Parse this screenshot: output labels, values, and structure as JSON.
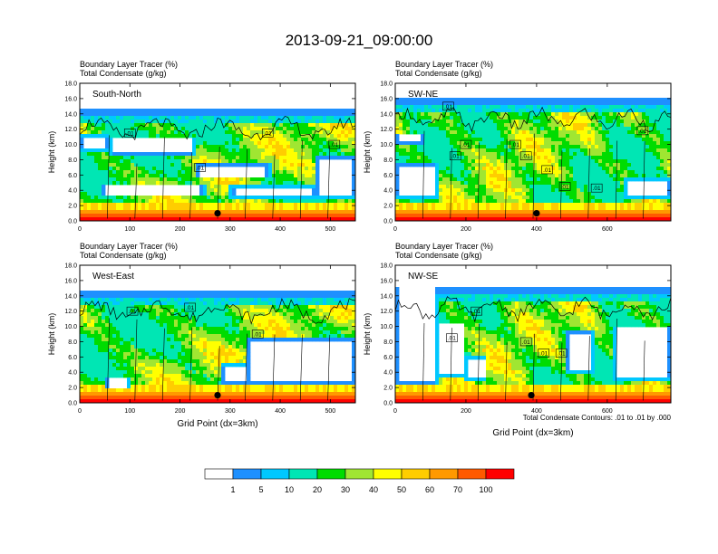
{
  "figure": {
    "title": "2013-09-21_09:00:00",
    "contour_note": "Total Condensate Contours: .01 to .01 by .000"
  },
  "chart_data": [
    {
      "type": "heatmap",
      "panel_label": "South-North",
      "title_line1": "Boundary Layer Tracer   (%)",
      "title_line2": "Total Condensate   (g/kg)",
      "xlabel": "",
      "ylabel": "Height (km)",
      "xlim": [
        0,
        550
      ],
      "ylim": [
        0,
        18
      ],
      "xticks": [
        0,
        100,
        200,
        300,
        400,
        500
      ],
      "yticks": [
        0,
        2,
        4,
        6,
        8,
        10,
        12,
        14,
        16,
        18
      ],
      "contour_labels": [
        {
          "text": ".01",
          "x": 100,
          "y": 11.5
        },
        {
          "text": ".01",
          "x": 240,
          "y": 7.0
        },
        {
          "text": ".01",
          "x": 375,
          "y": 11.5
        },
        {
          "text": ".01",
          "x": 508,
          "y": 10.0
        }
      ],
      "marker": {
        "x": 275,
        "y": 1.0
      },
      "cloud_top_km": 14.2,
      "clear_regions": [
        {
          "x": [
            0,
            60
          ],
          "y": [
            9.2,
            11.2
          ]
        },
        {
          "x": [
            60,
            230
          ],
          "y": [
            8.5,
            11.0
          ]
        },
        {
          "x": [
            230,
            380
          ],
          "y": [
            5.5,
            7.5
          ]
        },
        {
          "x": [
            40,
            250
          ],
          "y": [
            3.2,
            4.8
          ]
        },
        {
          "x": [
            300,
            470
          ],
          "y": [
            3.0,
            4.5
          ]
        },
        {
          "x": [
            470,
            550
          ],
          "y": [
            3.0,
            8.5
          ]
        }
      ]
    },
    {
      "type": "heatmap",
      "panel_label": "SW-NE",
      "title_line1": "Boundary Layer Tracer   (%)",
      "title_line2": "Total Condensate   (g/kg)",
      "xlabel": "",
      "ylabel": "Height (km)",
      "xlim": [
        0,
        780
      ],
      "ylim": [
        0,
        18
      ],
      "xticks": [
        0,
        200,
        400,
        600
      ],
      "yticks": [
        0,
        2,
        4,
        6,
        8,
        10,
        12,
        14,
        16,
        18
      ],
      "contour_labels": [
        {
          "text": ".01",
          "x": 150,
          "y": 15.0
        },
        {
          "text": ".01",
          "x": 200,
          "y": 10.0
        },
        {
          "text": ".01",
          "x": 170,
          "y": 8.5
        },
        {
          "text": ".01",
          "x": 340,
          "y": 10.0
        },
        {
          "text": ".01",
          "x": 370,
          "y": 8.5
        },
        {
          "text": ".01",
          "x": 430,
          "y": 6.7
        },
        {
          "text": ".01",
          "x": 480,
          "y": 4.5
        },
        {
          "text": ".01",
          "x": 570,
          "y": 4.3
        },
        {
          "text": ".01",
          "x": 700,
          "y": 11.8
        }
      ],
      "marker": {
        "x": 400,
        "y": 1.0
      },
      "cloud_top_km": 15.5,
      "clear_regions": [
        {
          "x": [
            0,
            120
          ],
          "y": [
            3.0,
            7.5
          ]
        },
        {
          "x": [
            0,
            80
          ],
          "y": [
            10.0,
            11.5
          ]
        },
        {
          "x": [
            650,
            780
          ],
          "y": [
            3.0,
            5.5
          ]
        }
      ]
    },
    {
      "type": "heatmap",
      "panel_label": "West-East",
      "title_line1": "Boundary Layer Tracer   (%)",
      "title_line2": "Total Condensate   (g/kg)",
      "xlabel": "Grid Point (dx=3km)",
      "ylabel": "Height (km)",
      "xlim": [
        0,
        550
      ],
      "ylim": [
        0,
        18
      ],
      "xticks": [
        0,
        100,
        200,
        300,
        400,
        500
      ],
      "yticks": [
        0,
        2,
        4,
        6,
        8,
        10,
        12,
        14,
        16,
        18
      ],
      "contour_labels": [
        {
          "text": ".01",
          "x": 105,
          "y": 12.0
        },
        {
          "text": ".01",
          "x": 220,
          "y": 12.5
        },
        {
          "text": ".01",
          "x": 355,
          "y": 9.0
        }
      ],
      "marker": {
        "x": 275,
        "y": 1.0
      },
      "cloud_top_km": 14.2,
      "clear_regions": [
        {
          "x": [
            330,
            550
          ],
          "y": [
            2.5,
            8.5
          ]
        },
        {
          "x": [
            280,
            340
          ],
          "y": [
            2.5,
            5.0
          ]
        },
        {
          "x": [
            50,
            100
          ],
          "y": [
            1.7,
            3.5
          ]
        }
      ]
    },
    {
      "type": "heatmap",
      "panel_label": "NW-SE",
      "title_line1": "Boundary Layer Tracer   (%)",
      "title_line2": "Total Condensate   (g/kg)",
      "xlabel": "Grid Point (dx=3km)",
      "ylabel": "Height (km)",
      "xlim": [
        0,
        780
      ],
      "ylim": [
        0,
        18
      ],
      "xticks": [
        0,
        200,
        400,
        600
      ],
      "yticks": [
        0,
        2,
        4,
        6,
        8,
        10,
        12,
        14,
        16,
        18
      ],
      "contour_labels": [
        {
          "text": ".01",
          "x": 230,
          "y": 12.0
        },
        {
          "text": ".01",
          "x": 160,
          "y": 8.5
        },
        {
          "text": ".01",
          "x": 370,
          "y": 8.0
        },
        {
          "text": ".01",
          "x": 420,
          "y": 6.5
        },
        {
          "text": ".01",
          "x": 470,
          "y": 6.5
        }
      ],
      "marker": {
        "x": 385,
        "y": 1.0
      },
      "cloud_top_km": 14.5,
      "clear_regions": [
        {
          "x": [
            0,
            120
          ],
          "y": [
            2.5,
            18
          ]
        },
        {
          "x": [
            120,
            200
          ],
          "y": [
            3.5,
            10.5
          ]
        },
        {
          "x": [
            200,
            260
          ],
          "y": [
            3.0,
            6.0
          ]
        },
        {
          "x": [
            620,
            780
          ],
          "y": [
            3.0,
            10.0
          ]
        },
        {
          "x": [
            480,
            560
          ],
          "y": [
            4.0,
            9.5
          ]
        }
      ]
    }
  ],
  "colorbar": {
    "labels": [
      "1",
      "5",
      "10",
      "20",
      "30",
      "40",
      "50",
      "60",
      "70",
      "100"
    ],
    "colors": [
      "#ffffff",
      "#1e90ff",
      "#00c8ff",
      "#00e6b4",
      "#00dc00",
      "#a0e632",
      "#ffff00",
      "#ffcd00",
      "#ff9900",
      "#ff5a00",
      "#ff0000"
    ]
  }
}
